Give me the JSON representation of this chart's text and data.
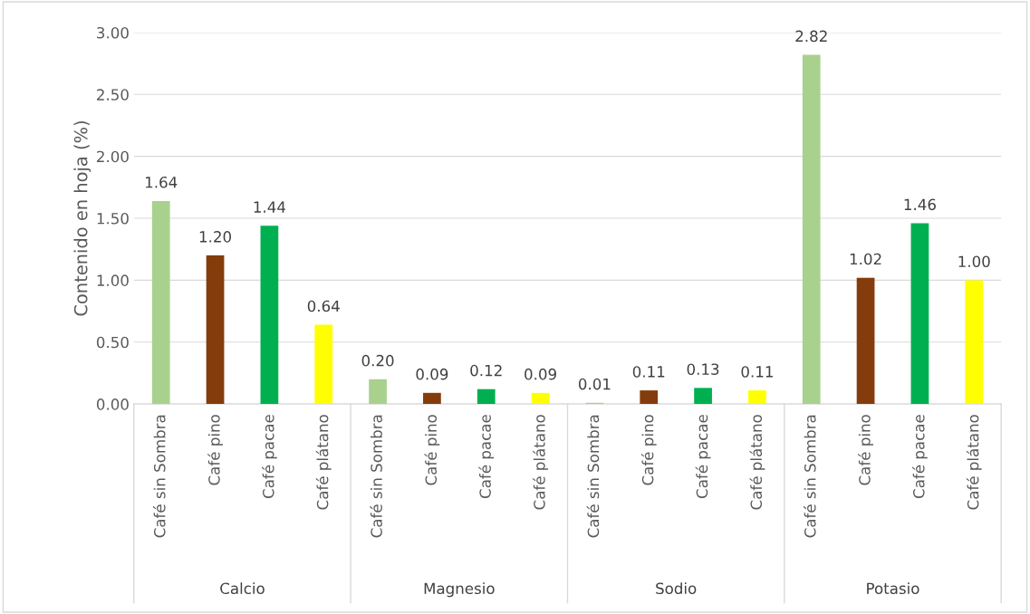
{
  "chart_data": {
    "type": "bar",
    "ylabel": "Contenido en hoja (%)",
    "categories": [
      "Café sin Sombra",
      "Café pino",
      "Café pacae",
      "Café plátano",
      "Café sin Sombra",
      "Café pino",
      "Café pacae",
      "Café plátano",
      "Café sin Sombra",
      "Café pino",
      "Café pacae",
      "Café plátano",
      "Café sin Sombra",
      "Café pino",
      "Café pacae",
      "Café plátano"
    ],
    "values": [
      1.64,
      1.2,
      1.44,
      0.64,
      0.2,
      0.09,
      0.12,
      0.09,
      0.01,
      0.11,
      0.13,
      0.11,
      2.82,
      1.02,
      1.46,
      1.0
    ],
    "value_labels": [
      "1.64",
      "1.20",
      "1.44",
      "0.64",
      "0.20",
      "0.09",
      "0.12",
      "0.09",
      "0.01",
      "0.11",
      "0.13",
      "0.11",
      "2.82",
      "1.02",
      "1.46",
      "1.00"
    ],
    "colors": [
      "#a9d18e",
      "#843c0c",
      "#00b050",
      "#ffff00",
      "#a9d18e",
      "#843c0c",
      "#00b050",
      "#ffff00",
      "#a9d18e",
      "#843c0c",
      "#00b050",
      "#ffff00",
      "#a9d18e",
      "#843c0c",
      "#00b050",
      "#ffff00"
    ],
    "annotations": [
      "Calcio",
      "Magnesio",
      "Sodio",
      "Potasio"
    ],
    "ylim": [
      0,
      3.0
    ],
    "yticks": [
      {
        "value": 0,
        "label": "0.00"
      },
      {
        "value": 0.5,
        "label": "0.50"
      },
      {
        "value": 1.0,
        "label": "1.00"
      },
      {
        "value": 1.5,
        "label": "1.50"
      },
      {
        "value": 2.0,
        "label": "2.00"
      },
      {
        "value": 2.5,
        "label": "2.50"
      },
      {
        "value": 3.0,
        "label": "3.00"
      }
    ],
    "grid": "y",
    "legend": false
  }
}
